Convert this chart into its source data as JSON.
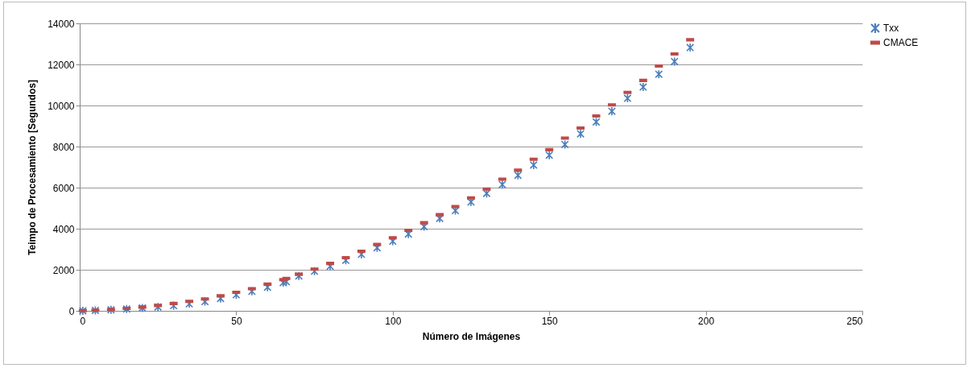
{
  "chart_data": {
    "type": "scatter",
    "xlabel": "Número de Imágenes",
    "ylabel": "Teimpo de Procesamiento [Segundos]",
    "xlim": [
      0,
      250
    ],
    "xticks": [
      0,
      50,
      100,
      150,
      200,
      250
    ],
    "ylim": [
      0,
      14000
    ],
    "yticks": [
      0,
      2000,
      4000,
      6000,
      8000,
      10000,
      12000,
      14000
    ],
    "grid": "y",
    "legend": "right",
    "series": [
      {
        "name": "Txx",
        "color": "#4a7ebb",
        "marker": "cross",
        "x": [
          1,
          5,
          10,
          15,
          20,
          25,
          30,
          35,
          40,
          45,
          50,
          55,
          60,
          65,
          66,
          70,
          75,
          80,
          85,
          90,
          95,
          100,
          105,
          110,
          115,
          120,
          125,
          130,
          135,
          140,
          145,
          150,
          155,
          160,
          165,
          170,
          175,
          180,
          185,
          190,
          195
        ],
        "values": [
          0,
          20,
          50,
          90,
          140,
          190,
          250,
          340,
          450,
          600,
          780,
          950,
          1150,
          1370,
          1420,
          1700,
          1930,
          2170,
          2460,
          2750,
          3070,
          3390,
          3740,
          4100,
          4500,
          4880,
          5300,
          5720,
          6150,
          6600,
          7100,
          7580,
          8100,
          8620,
          9200,
          9720,
          10350,
          10900,
          11520,
          12140,
          12820
        ]
      },
      {
        "name": "CMACE",
        "color": "#be4b48",
        "x": [
          1,
          5,
          10,
          15,
          20,
          25,
          30,
          35,
          40,
          45,
          50,
          55,
          60,
          65,
          66,
          70,
          75,
          80,
          85,
          90,
          95,
          100,
          105,
          110,
          115,
          120,
          125,
          130,
          135,
          140,
          145,
          150,
          155,
          160,
          165,
          170,
          175,
          180,
          185,
          190,
          195
        ],
        "values": [
          10,
          30,
          70,
          120,
          180,
          260,
          360,
          460,
          580,
          730,
          900,
          1080,
          1300,
          1520,
          1580,
          1780,
          2030,
          2310,
          2590,
          2900,
          3230,
          3560,
          3920,
          4290,
          4680,
          5080,
          5500,
          5930,
          6410,
          6850,
          7380,
          7850,
          8410,
          8900,
          9490,
          10030,
          10640,
          11220,
          11920,
          12510,
          13200
        ]
      }
    ]
  }
}
